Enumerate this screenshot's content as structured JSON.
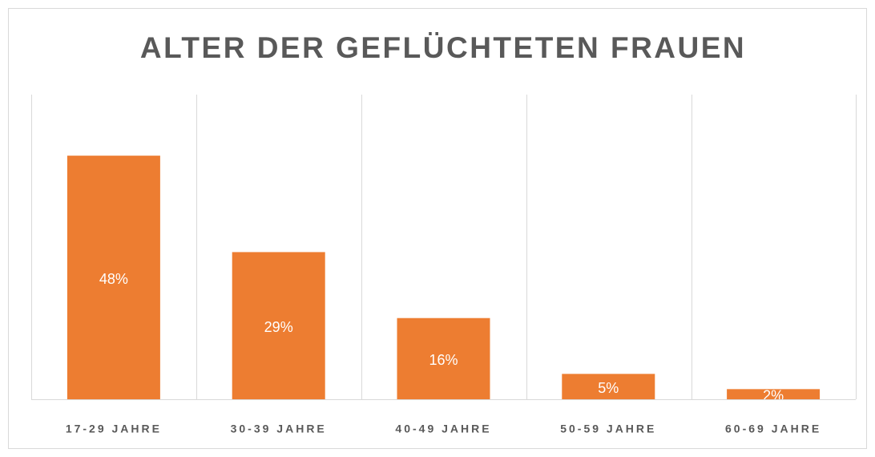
{
  "chart_data": {
    "type": "bar",
    "title": "ALTER DER GEFLÜCHTETEN FRAUEN",
    "categories": [
      "17-29 JAHRE",
      "30-39 JAHRE",
      "40-49 JAHRE",
      "50-59 JAHRE",
      "60-69 JAHRE"
    ],
    "values": [
      48,
      29,
      16,
      5,
      2
    ],
    "value_labels": [
      "48%",
      "29%",
      "16%",
      "5%",
      "2%"
    ],
    "color": "#ed7d31"
  }
}
